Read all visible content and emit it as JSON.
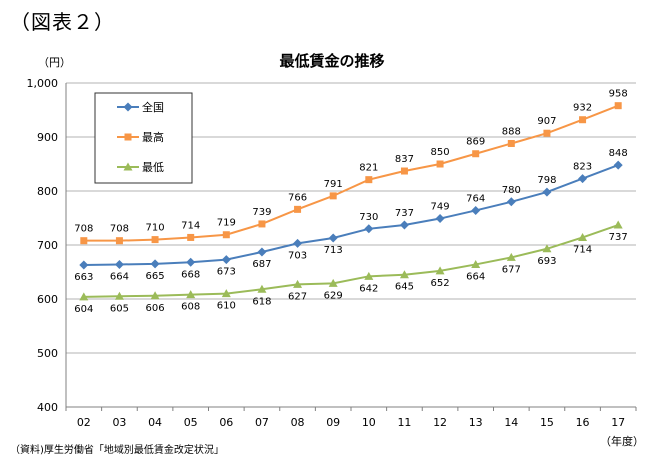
{
  "figure_label": "（図表２）",
  "source_note": "（資料)厚生労働省「地域別最低賃金改定状況」",
  "chart_data": {
    "type": "line",
    "title": "最低賃金の推移",
    "y_unit_label": "（円）",
    "x_unit_label": "（年度）",
    "ylim": [
      400,
      1000
    ],
    "yticks": [
      "400",
      "500",
      "600",
      "700",
      "800",
      "900",
      "1,000"
    ],
    "ytick_values": [
      400,
      500,
      600,
      700,
      800,
      900,
      1000
    ],
    "categories": [
      "02",
      "03",
      "04",
      "05",
      "06",
      "07",
      "08",
      "09",
      "10",
      "11",
      "12",
      "13",
      "14",
      "15",
      "16",
      "17"
    ],
    "grid": true,
    "legend_placement": "top-left",
    "series": [
      {
        "name": "全国",
        "color": "#4A7EBB",
        "marker": "diamond",
        "values": [
          663,
          664,
          665,
          668,
          673,
          687,
          703,
          713,
          730,
          737,
          749,
          764,
          780,
          798,
          823,
          848
        ]
      },
      {
        "name": "最高",
        "color": "#F79646",
        "marker": "square",
        "values": [
          708,
          708,
          710,
          714,
          719,
          739,
          766,
          791,
          821,
          837,
          850,
          869,
          888,
          907,
          932,
          958
        ]
      },
      {
        "name": "最低",
        "color": "#9BBB59",
        "marker": "triangle",
        "values": [
          604,
          605,
          606,
          608,
          610,
          618,
          627,
          629,
          642,
          645,
          652,
          664,
          677,
          693,
          714,
          737
        ]
      }
    ]
  }
}
